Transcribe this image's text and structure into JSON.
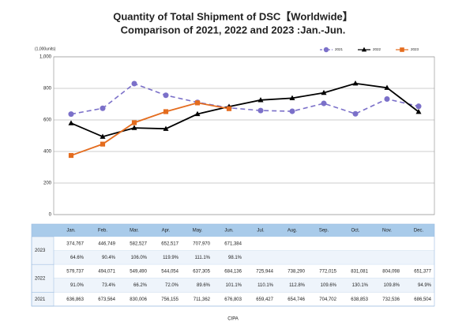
{
  "chart_data": {
    "type": "line",
    "title": "Quantity of Total Shipment of DSC【Worldwide】",
    "subtitle": "Comparison of 2021, 2022 and 2023 :Jan.-Jun.",
    "y_axis_label": "(1,000units)",
    "source": "CIPA",
    "categories": [
      "Jan.",
      "Feb.",
      "Mar.",
      "Apr.",
      "May.",
      "Jun.",
      "Jul.",
      "Aug.",
      "Sep.",
      "Oct.",
      "Nov.",
      "Dec."
    ],
    "ylim": [
      0,
      1000
    ],
    "yticks": [
      0,
      200,
      400,
      600,
      800,
      {
        "value": 1000,
        "label": "1,000"
      }
    ],
    "grid": true,
    "legend": "top-right",
    "series": [
      {
        "name": "2021",
        "color": "#7b70c9",
        "dash": true,
        "marker": "circle",
        "values": [
          636.863,
          673.564,
          830.006,
          756.155,
          711.362,
          676.803,
          659.427,
          654.746,
          704.702,
          638.853,
          732.536,
          686.504
        ],
        "value_labels": [
          "636,863",
          "673,564",
          "830,006",
          "756,155",
          "711,362",
          "676,803",
          "659,427",
          "654,746",
          "704,702",
          "638,853",
          "732,536",
          "686,504"
        ]
      },
      {
        "name": "2022",
        "color": "#000000",
        "dash": false,
        "marker": "triangle",
        "values": [
          579.737,
          494.071,
          549.49,
          544.054,
          637.305,
          684.136,
          725.944,
          738.29,
          772.015,
          831.081,
          804.098,
          651.377
        ],
        "value_labels": [
          "579,737",
          "494,071",
          "549,490",
          "544,054",
          "637,305",
          "684,136",
          "725,944",
          "738,290",
          "772,015",
          "831,081",
          "804,098",
          "651,377"
        ],
        "yoy": [
          "91.0%",
          "73.4%",
          "66.2%",
          "72.0%",
          "89.6%",
          "101.1%",
          "110.1%",
          "112.8%",
          "109.6%",
          "130.1%",
          "109.8%",
          "94.9%"
        ]
      },
      {
        "name": "2023",
        "color": "#e46c1e",
        "dash": false,
        "marker": "square",
        "values": [
          374.767,
          446.749,
          582.527,
          652.517,
          707.97,
          671.384,
          null,
          null,
          null,
          null,
          null,
          null
        ],
        "value_labels": [
          "374,767",
          "446,749",
          "582,527",
          "652,517",
          "707,970",
          "671,384",
          null,
          null,
          null,
          null,
          null,
          null
        ],
        "yoy": [
          "64.6%",
          "90.4%",
          "106.0%",
          "119.9%",
          "111.1%",
          "98.1%",
          null,
          null,
          null,
          null,
          null,
          null
        ]
      }
    ]
  }
}
